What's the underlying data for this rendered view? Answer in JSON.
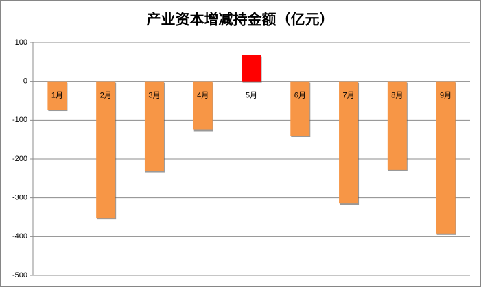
{
  "chart_data": {
    "type": "bar",
    "title": "产业资本增减持金额（亿元）",
    "categories": [
      "1月",
      "2月",
      "3月",
      "4月",
      "5月",
      "6月",
      "7月",
      "8月",
      "9月"
    ],
    "values": [
      -73,
      -352,
      -231,
      -125,
      67,
      -140,
      -315,
      -228,
      -392
    ],
    "colors": [
      "#f79646",
      "#f79646",
      "#f79646",
      "#f79646",
      "#ff0000",
      "#f79646",
      "#f79646",
      "#f79646",
      "#f79646"
    ],
    "ylim": [
      -500,
      100
    ],
    "yticks": [
      -500,
      -400,
      -300,
      -200,
      -100,
      0,
      100
    ],
    "grid": true
  }
}
